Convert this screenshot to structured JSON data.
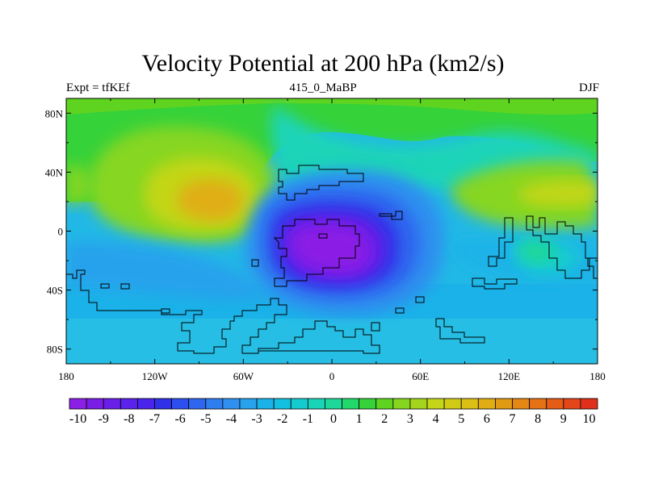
{
  "title": "Velocity Potential at 200 hPa (km2/s)",
  "subtitle_left": "Expt = tfKEf",
  "subtitle_center": "415_0_MaBP",
  "subtitle_right": "DJF",
  "map": {
    "lon_range": [
      -180,
      180
    ],
    "lat_range": [
      -90,
      90
    ],
    "x_ticks": [
      {
        "value": -180,
        "label": "180"
      },
      {
        "value": -120,
        "label": "120W"
      },
      {
        "value": -60,
        "label": "60W"
      },
      {
        "value": 0,
        "label": "0"
      },
      {
        "value": 60,
        "label": "60E"
      },
      {
        "value": 120,
        "label": "120E"
      },
      {
        "value": 180,
        "label": "180"
      }
    ],
    "y_ticks": [
      {
        "value": 80,
        "label": "80N"
      },
      {
        "value": 40,
        "label": "40N"
      },
      {
        "value": 0,
        "label": "0"
      },
      {
        "value": -40,
        "label": "40S"
      },
      {
        "value": -80,
        "label": "80S"
      }
    ],
    "field_centers": [
      {
        "name": "velocity-potential-minimum",
        "lon": 5,
        "lat": -12,
        "value": -10
      },
      {
        "name": "velocity-potential-maximum-west",
        "lon": -75,
        "lat": 25,
        "value": 7
      },
      {
        "name": "velocity-potential-maximum-east",
        "lon": 155,
        "lat": 27,
        "value": 4
      }
    ]
  },
  "colorbar": {
    "labels": [
      "-10",
      "-9",
      "-8",
      "-7",
      "-6",
      "-5",
      "-4",
      "-3",
      "-2",
      "-1",
      "0",
      "1",
      "2",
      "3",
      "4",
      "5",
      "6",
      "7",
      "8",
      "9",
      "10"
    ],
    "colors": [
      "#8b1fe6",
      "#7a1ee6",
      "#6a1fe8",
      "#5a22ea",
      "#4a24ec",
      "#3030e8",
      "#2e4ff0",
      "#2e66ef",
      "#2f7ef0",
      "#2f90ef",
      "#27a2ec",
      "#1ab2e8",
      "#14c0e0",
      "#14cccf",
      "#1ad4b8",
      "#1ed89a",
      "#22d86c",
      "#36d23a",
      "#5ed420",
      "#86d620",
      "#a4d41c",
      "#c3d618",
      "#d2cb16",
      "#dbbf14",
      "#e0ae14",
      "#e29a14",
      "#e48714",
      "#e57214",
      "#e45c16",
      "#e2461a",
      "#e0301c"
    ]
  }
}
